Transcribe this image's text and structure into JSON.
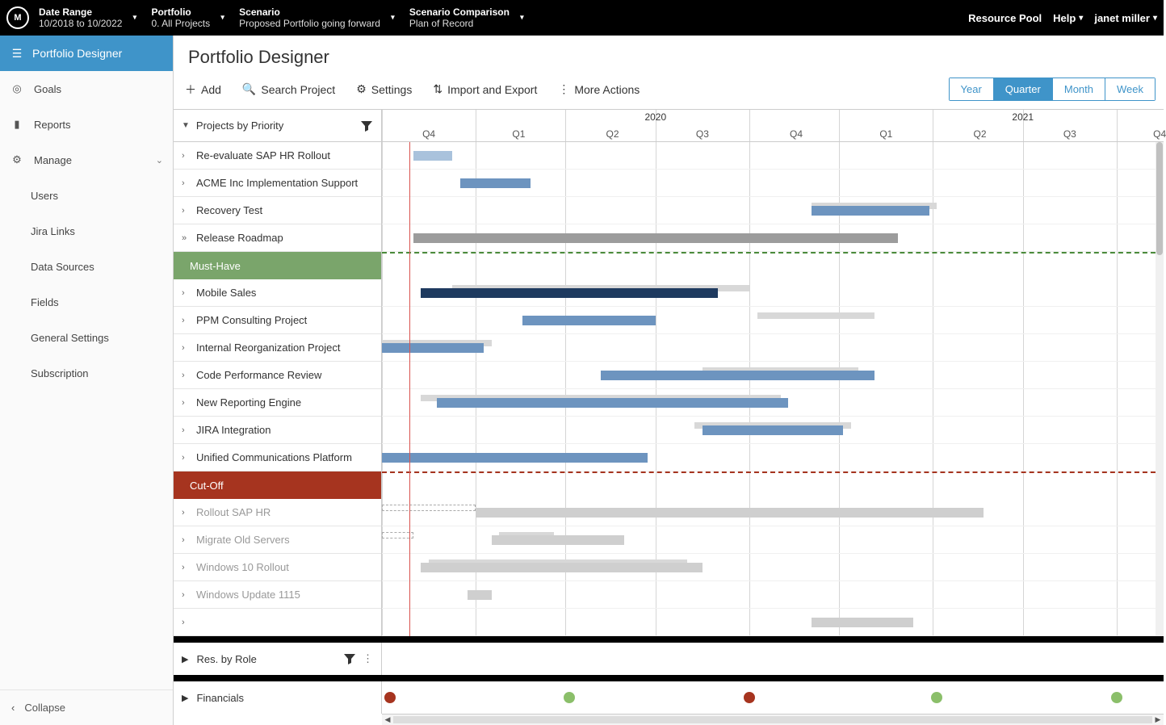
{
  "topbar": {
    "logo_text": "M",
    "selectors": [
      {
        "label": "Date Range",
        "value": "10/2018 to 10/2022"
      },
      {
        "label": "Portfolio",
        "value": "0. All Projects"
      },
      {
        "label": "Scenario",
        "value": "Proposed Portfolio going forward"
      },
      {
        "label": "Scenario Comparison",
        "value": "Plan of Record"
      }
    ],
    "links": {
      "resource_pool": "Resource Pool",
      "help": "Help",
      "user": "janet miller"
    }
  },
  "sidebar": {
    "active": "Portfolio Designer",
    "items": [
      {
        "icon": "target",
        "label": "Goals",
        "interactable": true
      },
      {
        "icon": "doc",
        "label": "Reports",
        "interactable": true
      },
      {
        "icon": "gear",
        "label": "Manage",
        "interactable": true,
        "expanded": true
      }
    ],
    "subitems": [
      "Users",
      "Jira Links",
      "Data Sources",
      "Fields",
      "General Settings",
      "Subscription"
    ],
    "collapse": "Collapse"
  },
  "page": {
    "title": "Portfolio Designer",
    "toolbar": {
      "add": "Add",
      "search": "Search Project",
      "settings": "Settings",
      "import": "Import and Export",
      "more": "More Actions"
    },
    "zoom": {
      "options": [
        "Year",
        "Quarter",
        "Month",
        "Week"
      ],
      "selected": "Quarter"
    }
  },
  "gantt": {
    "left_header": "Projects by Priority",
    "timeline": {
      "today_pct": 3.5,
      "years": [
        {
          "label": "2020",
          "pct": 35
        },
        {
          "label": "2021",
          "pct": 82
        }
      ],
      "quarters": [
        {
          "label": "Q4",
          "pct": 6
        },
        {
          "label": "Q1",
          "pct": 17.5
        },
        {
          "label": "Q2",
          "pct": 29.5
        },
        {
          "label": "Q3",
          "pct": 41
        },
        {
          "label": "Q4",
          "pct": 53
        },
        {
          "label": "Q1",
          "pct": 64.5
        },
        {
          "label": "Q2",
          "pct": 76.5
        },
        {
          "label": "Q3",
          "pct": 88
        },
        {
          "label": "Q4",
          "pct": 99.5
        }
      ],
      "grid_pcts": [
        0,
        12,
        23.5,
        35,
        47,
        58.5,
        70.5,
        82,
        94
      ]
    },
    "rows": [
      {
        "type": "proj",
        "label": "Re-evaluate SAP HR Rollout",
        "bars": [
          {
            "cls": "blue-lt",
            "l": 4,
            "w": 5
          }
        ]
      },
      {
        "type": "proj",
        "label": "ACME Inc Implementation Support",
        "bars": [
          {
            "cls": "blue",
            "l": 10,
            "w": 9
          }
        ]
      },
      {
        "type": "proj",
        "label": "Recovery Test",
        "bars": [
          {
            "cls": "shadow",
            "l": 55,
            "w": 16
          },
          {
            "cls": "blue",
            "l": 55,
            "w": 15
          }
        ]
      },
      {
        "type": "proj",
        "label": "Release Roadmap",
        "caret": "»",
        "bars": [
          {
            "cls": "grey",
            "l": 4,
            "w": 62
          }
        ]
      },
      {
        "type": "band",
        "label": "Must-Have",
        "band": "green"
      },
      {
        "type": "proj",
        "label": "Mobile Sales",
        "bars": [
          {
            "cls": "shadow",
            "l": 9,
            "w": 38
          },
          {
            "cls": "navy",
            "l": 5,
            "w": 38
          }
        ]
      },
      {
        "type": "proj",
        "label": "PPM Consulting Project",
        "bars": [
          {
            "cls": "shadow",
            "l": 48,
            "w": 15
          },
          {
            "cls": "blue",
            "l": 18,
            "w": 17
          }
        ]
      },
      {
        "type": "proj",
        "label": "Internal Reorganization Project",
        "bars": [
          {
            "cls": "shadow",
            "l": 0,
            "w": 14
          },
          {
            "cls": "blue",
            "l": 0,
            "w": 13
          }
        ]
      },
      {
        "type": "proj",
        "label": "Code Performance Review",
        "bars": [
          {
            "cls": "shadow",
            "l": 41,
            "w": 20
          },
          {
            "cls": "blue",
            "l": 28,
            "w": 35
          }
        ]
      },
      {
        "type": "proj",
        "label": "New Reporting Engine",
        "bars": [
          {
            "cls": "shadow",
            "l": 5,
            "w": 46
          },
          {
            "cls": "blue",
            "l": 7,
            "w": 45
          }
        ]
      },
      {
        "type": "proj",
        "label": "JIRA Integration",
        "bars": [
          {
            "cls": "shadow",
            "l": 40,
            "w": 20
          },
          {
            "cls": "blue",
            "l": 41,
            "w": 18
          }
        ]
      },
      {
        "type": "proj",
        "label": "Unified Communications Platform",
        "bars": [
          {
            "cls": "blue",
            "l": 0,
            "w": 34
          }
        ]
      },
      {
        "type": "band",
        "label": "Cut-Off",
        "band": "red"
      },
      {
        "type": "proj",
        "label": "Rollout SAP HR",
        "dim": true,
        "bars": [
          {
            "cls": "hatch",
            "l": 0,
            "w": 12
          },
          {
            "cls": "grey-lt",
            "l": 12,
            "w": 65
          }
        ]
      },
      {
        "type": "proj",
        "label": "Migrate Old Servers",
        "dim": true,
        "bars": [
          {
            "cls": "hatch",
            "l": 0,
            "w": 4
          },
          {
            "cls": "shadow",
            "l": 15,
            "w": 7
          },
          {
            "cls": "grey-lt",
            "l": 14,
            "w": 17
          }
        ]
      },
      {
        "type": "proj",
        "label": "Windows 10 Rollout",
        "dim": true,
        "bars": [
          {
            "cls": "shadow",
            "l": 6,
            "w": 33
          },
          {
            "cls": "grey-lt",
            "l": 5,
            "w": 36
          }
        ]
      },
      {
        "type": "proj",
        "label": "Windows Update 1115",
        "dim": true,
        "bars": [
          {
            "cls": "grey-lt",
            "l": 11,
            "w": 3
          }
        ]
      },
      {
        "type": "proj",
        "label": "",
        "dim": true,
        "bars": [
          {
            "cls": "grey-lt",
            "l": 55,
            "w": 13
          }
        ]
      }
    ]
  },
  "bottom": {
    "res_by_role": "Res. by Role",
    "financials": "Financials",
    "dots": [
      {
        "pct": 1,
        "color": "red"
      },
      {
        "pct": 24,
        "color": "green"
      },
      {
        "pct": 47,
        "color": "red"
      },
      {
        "pct": 71,
        "color": "green"
      },
      {
        "pct": 94,
        "color": "green"
      }
    ]
  }
}
